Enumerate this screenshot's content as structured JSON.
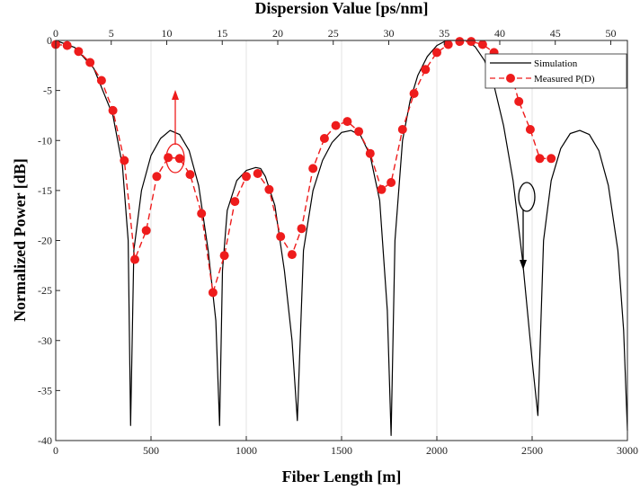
{
  "chart_data": {
    "type": "line",
    "title": "",
    "xlabel": "Fiber Length [m]",
    "ylabel": "Normalized Power [dB]",
    "x2label": "Dispersion Value [ps/nm]",
    "xlim": [
      0,
      3000
    ],
    "ylim": [
      -40,
      0
    ],
    "x2lim": [
      0,
      51.5
    ],
    "xticks": [
      0,
      500,
      1000,
      1500,
      2000,
      2500,
      3000
    ],
    "yticks": [
      0,
      -5,
      -10,
      -15,
      -20,
      -25,
      -30,
      -35,
      -40
    ],
    "x2ticks": [
      0,
      5,
      10,
      15,
      20,
      25,
      30,
      35,
      40,
      45,
      50
    ],
    "grid": "vertical",
    "legend_position": "top-right",
    "series": [
      {
        "name": "Simulation",
        "style": "solid",
        "color": "#000000",
        "x": [
          0,
          100,
          200,
          300,
          350,
          380,
          393,
          410,
          450,
          500,
          550,
          600,
          650,
          700,
          750,
          800,
          840,
          860,
          875,
          900,
          950,
          1000,
          1050,
          1075,
          1100,
          1150,
          1200,
          1240,
          1268,
          1300,
          1350,
          1400,
          1450,
          1500,
          1550,
          1600,
          1650,
          1700,
          1740,
          1760,
          1780,
          1820,
          1860,
          1900,
          1950,
          2000,
          2050,
          2100,
          2150,
          2200,
          2250,
          2300,
          2350,
          2400,
          2450,
          2500,
          2530,
          2560,
          2600,
          2650,
          2700,
          2750,
          2800,
          2850,
          2900,
          2950,
          2980,
          3000
        ],
        "y": [
          0,
          -0.7,
          -2.8,
          -7.5,
          -12.5,
          -20,
          -38.5,
          -21,
          -15,
          -11.5,
          -9.8,
          -9,
          -9.4,
          -11,
          -14.5,
          -21,
          -28,
          -38.5,
          -23,
          -17,
          -14,
          -13,
          -12.7,
          -12.8,
          -13.6,
          -16.5,
          -23,
          -30,
          -38,
          -21,
          -15,
          -12,
          -10.2,
          -9.2,
          -9,
          -9.5,
          -11.5,
          -16,
          -27,
          -39.5,
          -20,
          -10,
          -6,
          -3.5,
          -1.6,
          -0.5,
          0,
          0,
          0,
          -0.6,
          -2,
          -4.5,
          -8.5,
          -14,
          -22,
          -32,
          -37.5,
          -20,
          -14,
          -10.8,
          -9.3,
          -9,
          -9.4,
          -11,
          -14.5,
          -21,
          -29,
          -39
        ]
      },
      {
        "name": "Measured P(D)",
        "style": "dashed",
        "color": "#ee1c1c",
        "x": [
          0,
          60,
          120,
          180,
          240,
          300,
          360,
          415,
          475,
          530,
          590,
          650,
          705,
          765,
          825,
          885,
          940,
          1000,
          1060,
          1120,
          1180,
          1240,
          1290,
          1350,
          1410,
          1470,
          1530,
          1590,
          1650,
          1710,
          1760,
          1820,
          1880,
          1940,
          2000,
          2060,
          2120,
          2180,
          2240,
          2300,
          2360,
          2400,
          2430,
          2490,
          2540,
          2600
        ],
        "y": [
          -0.4,
          -0.5,
          -1.1,
          -2.2,
          -4,
          -7,
          -12,
          -21.9,
          -19,
          -13.6,
          -11.7,
          -11.8,
          -13.4,
          -17.3,
          -25.2,
          -21.5,
          -16.1,
          -13.6,
          -13.3,
          -14.9,
          -19.6,
          -21.4,
          -18.8,
          -12.8,
          -9.8,
          -8.5,
          -8.1,
          -9.1,
          -11.3,
          -14.9,
          -14.2,
          -8.9,
          -5.3,
          -2.9,
          -1.2,
          -0.4,
          -0.1,
          -0.1,
          -0.4,
          -1.2,
          -3.5,
          -4,
          -6.1,
          -8.9,
          -11.8,
          -11.8
        ]
      }
    ]
  }
}
